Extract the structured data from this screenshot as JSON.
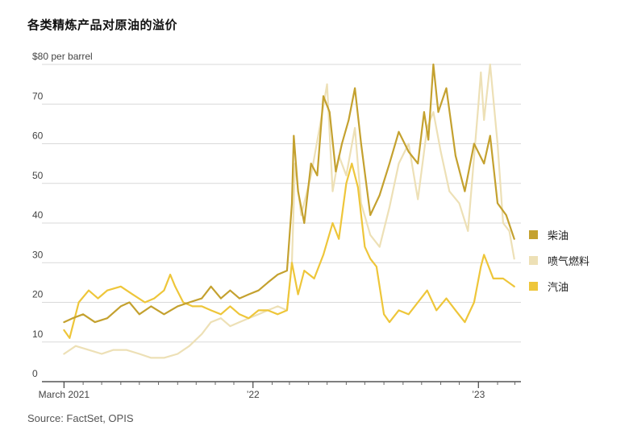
{
  "title": "各类精炼产品对原油的溢价",
  "source": "Source: FactSet, OPIS",
  "colors": {
    "diesel": "#c4a12f",
    "jet": "#ede0b6",
    "gasoline": "#eec63a",
    "grid": "#d9d9d9",
    "axis": "#333333"
  },
  "chart_data": {
    "type": "line",
    "title": "各类精炼产品对原油的溢价",
    "ylabel": "$80 per barrel",
    "ylim": [
      0,
      80
    ],
    "yticks": [
      {
        "value": 0,
        "label": "0"
      },
      {
        "value": 10,
        "label": "10"
      },
      {
        "value": 20,
        "label": "20"
      },
      {
        "value": 30,
        "label": "30"
      },
      {
        "value": 40,
        "label": "40"
      },
      {
        "value": 50,
        "label": "50"
      },
      {
        "value": 60,
        "label": "60"
      },
      {
        "value": 70,
        "label": "70"
      },
      {
        "value": 80,
        "label": "$80 per barrel"
      }
    ],
    "xlim": [
      "2021-02-22",
      "2023-03-03"
    ],
    "xticks": [
      {
        "date": "2021-03-01",
        "label": "March 2021"
      },
      {
        "date": "2022-01-01",
        "label": "’22"
      },
      {
        "date": "2023-01-01",
        "label": "’23"
      }
    ],
    "minor_ticks": [
      "2021-04-01",
      "2021-05-01",
      "2021-06-01",
      "2021-07-01",
      "2021-08-01",
      "2021-09-01",
      "2021-10-01",
      "2021-11-01",
      "2021-12-01",
      "2022-02-01",
      "2022-03-01",
      "2022-04-01",
      "2022-05-01",
      "2022-06-01",
      "2022-07-01",
      "2022-08-01",
      "2022-09-01",
      "2022-10-01",
      "2022-11-01",
      "2022-12-01",
      "2023-02-01",
      "2023-03-01"
    ],
    "legend_position": "right",
    "series": [
      {
        "name": "柴油",
        "color_key": "diesel",
        "points": [
          [
            "2021-03-01",
            15
          ],
          [
            "2021-03-15",
            16
          ],
          [
            "2021-04-01",
            17
          ],
          [
            "2021-04-20",
            15
          ],
          [
            "2021-05-10",
            16
          ],
          [
            "2021-06-01",
            19
          ],
          [
            "2021-06-15",
            20
          ],
          [
            "2021-07-01",
            17
          ],
          [
            "2021-07-20",
            19
          ],
          [
            "2021-08-10",
            17
          ],
          [
            "2021-09-01",
            19
          ],
          [
            "2021-09-20",
            20
          ],
          [
            "2021-10-10",
            21
          ],
          [
            "2021-10-25",
            24
          ],
          [
            "2021-11-10",
            21
          ],
          [
            "2021-11-25",
            23
          ],
          [
            "2021-12-10",
            21
          ],
          [
            "2021-12-25",
            22
          ],
          [
            "2022-01-10",
            23
          ],
          [
            "2022-01-25",
            25
          ],
          [
            "2022-02-10",
            27
          ],
          [
            "2022-02-25",
            28
          ],
          [
            "2022-03-05",
            45
          ],
          [
            "2022-03-08",
            62
          ],
          [
            "2022-03-15",
            48
          ],
          [
            "2022-03-25",
            40
          ],
          [
            "2022-04-05",
            55
          ],
          [
            "2022-04-15",
            52
          ],
          [
            "2022-04-25",
            72
          ],
          [
            "2022-05-05",
            68
          ],
          [
            "2022-05-15",
            53
          ],
          [
            "2022-05-25",
            60
          ],
          [
            "2022-06-05",
            66
          ],
          [
            "2022-06-15",
            74
          ],
          [
            "2022-06-25",
            60
          ],
          [
            "2022-07-10",
            42
          ],
          [
            "2022-07-25",
            47
          ],
          [
            "2022-08-10",
            55
          ],
          [
            "2022-08-25",
            63
          ],
          [
            "2022-09-10",
            58
          ],
          [
            "2022-09-25",
            55
          ],
          [
            "2022-10-05",
            68
          ],
          [
            "2022-10-12",
            61
          ],
          [
            "2022-10-20",
            80
          ],
          [
            "2022-10-28",
            68
          ],
          [
            "2022-11-10",
            74
          ],
          [
            "2022-11-25",
            57
          ],
          [
            "2022-12-10",
            48
          ],
          [
            "2022-12-25",
            60
          ],
          [
            "2023-01-10",
            55
          ],
          [
            "2023-01-20",
            62
          ],
          [
            "2023-02-01",
            45
          ],
          [
            "2023-02-15",
            42
          ],
          [
            "2023-02-28",
            36
          ]
        ]
      },
      {
        "name": "喷气燃料",
        "color_key": "jet",
        "points": [
          [
            "2021-03-01",
            7
          ],
          [
            "2021-03-20",
            9
          ],
          [
            "2021-04-10",
            8
          ],
          [
            "2021-05-01",
            7
          ],
          [
            "2021-05-20",
            8
          ],
          [
            "2021-06-10",
            8
          ],
          [
            "2021-07-01",
            7
          ],
          [
            "2021-07-20",
            6
          ],
          [
            "2021-08-10",
            6
          ],
          [
            "2021-09-01",
            7
          ],
          [
            "2021-09-20",
            9
          ],
          [
            "2021-10-10",
            12
          ],
          [
            "2021-10-25",
            15
          ],
          [
            "2021-11-10",
            16
          ],
          [
            "2021-11-25",
            14
          ],
          [
            "2021-12-10",
            15
          ],
          [
            "2021-12-25",
            16
          ],
          [
            "2022-01-10",
            17
          ],
          [
            "2022-01-25",
            18
          ],
          [
            "2022-02-10",
            19
          ],
          [
            "2022-02-25",
            18
          ],
          [
            "2022-03-05",
            30
          ],
          [
            "2022-03-10",
            55
          ],
          [
            "2022-03-20",
            42
          ],
          [
            "2022-04-05",
            52
          ],
          [
            "2022-04-20",
            65
          ],
          [
            "2022-05-01",
            75
          ],
          [
            "2022-05-10",
            48
          ],
          [
            "2022-05-20",
            57
          ],
          [
            "2022-06-01",
            52
          ],
          [
            "2022-06-15",
            64
          ],
          [
            "2022-06-25",
            45
          ],
          [
            "2022-07-10",
            37
          ],
          [
            "2022-07-25",
            34
          ],
          [
            "2022-08-10",
            44
          ],
          [
            "2022-08-25",
            55
          ],
          [
            "2022-09-10",
            60
          ],
          [
            "2022-09-25",
            46
          ],
          [
            "2022-10-10",
            64
          ],
          [
            "2022-10-20",
            68
          ],
          [
            "2022-11-01",
            58
          ],
          [
            "2022-11-15",
            48
          ],
          [
            "2022-12-01",
            45
          ],
          [
            "2022-12-15",
            38
          ],
          [
            "2023-01-01",
            70
          ],
          [
            "2023-01-05",
            78
          ],
          [
            "2023-01-10",
            66
          ],
          [
            "2023-01-20",
            80
          ],
          [
            "2023-02-01",
            60
          ],
          [
            "2023-02-10",
            40
          ],
          [
            "2023-02-20",
            38
          ],
          [
            "2023-02-28",
            31
          ]
        ]
      },
      {
        "name": "汽油",
        "color_key": "gasoline",
        "points": [
          [
            "2021-03-01",
            13
          ],
          [
            "2021-03-10",
            11
          ],
          [
            "2021-03-25",
            20
          ],
          [
            "2021-04-10",
            23
          ],
          [
            "2021-04-25",
            21
          ],
          [
            "2021-05-10",
            23
          ],
          [
            "2021-06-01",
            24
          ],
          [
            "2021-06-20",
            22
          ],
          [
            "2021-07-10",
            20
          ],
          [
            "2021-07-25",
            21
          ],
          [
            "2021-08-10",
            23
          ],
          [
            "2021-08-20",
            27
          ],
          [
            "2021-08-28",
            24
          ],
          [
            "2021-09-10",
            20
          ],
          [
            "2021-09-25",
            19
          ],
          [
            "2021-10-10",
            19
          ],
          [
            "2021-10-25",
            18
          ],
          [
            "2021-11-10",
            17
          ],
          [
            "2021-11-25",
            19
          ],
          [
            "2021-12-10",
            17
          ],
          [
            "2021-12-25",
            16
          ],
          [
            "2022-01-10",
            18
          ],
          [
            "2022-01-25",
            18
          ],
          [
            "2022-02-10",
            17
          ],
          [
            "2022-02-25",
            18
          ],
          [
            "2022-03-05",
            30
          ],
          [
            "2022-03-15",
            22
          ],
          [
            "2022-03-25",
            28
          ],
          [
            "2022-04-10",
            26
          ],
          [
            "2022-04-25",
            32
          ],
          [
            "2022-05-10",
            40
          ],
          [
            "2022-05-20",
            36
          ],
          [
            "2022-06-01",
            50
          ],
          [
            "2022-06-10",
            55
          ],
          [
            "2022-06-20",
            49
          ],
          [
            "2022-07-01",
            34
          ],
          [
            "2022-07-10",
            31
          ],
          [
            "2022-07-20",
            29
          ],
          [
            "2022-08-01",
            17
          ],
          [
            "2022-08-10",
            15
          ],
          [
            "2022-08-25",
            18
          ],
          [
            "2022-09-10",
            17
          ],
          [
            "2022-09-25",
            20
          ],
          [
            "2022-10-10",
            23
          ],
          [
            "2022-10-25",
            18
          ],
          [
            "2022-11-10",
            21
          ],
          [
            "2022-11-25",
            18
          ],
          [
            "2022-12-10",
            15
          ],
          [
            "2022-12-25",
            20
          ],
          [
            "2023-01-05",
            29
          ],
          [
            "2023-01-10",
            32
          ],
          [
            "2023-01-25",
            26
          ],
          [
            "2023-02-10",
            26
          ],
          [
            "2023-02-28",
            24
          ]
        ]
      }
    ]
  }
}
